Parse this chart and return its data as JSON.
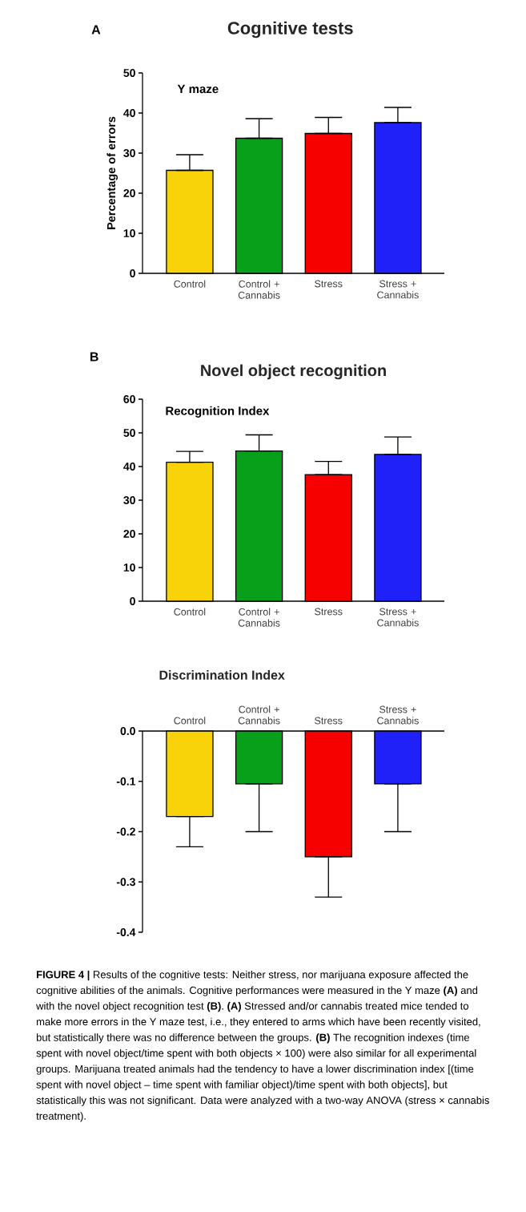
{
  "chart_data": [
    {
      "type": "bar",
      "title": "Cognitive tests",
      "subtitle": "Y maze",
      "ylabel": "Percentage of errors",
      "categories": [
        "Control",
        "Control + Cannabis",
        "Stress",
        "Stress + Cannabis"
      ],
      "values": [
        25.7,
        33.7,
        34.9,
        37.6
      ],
      "colors": [
        "#f9d30a",
        "#08a01a",
        "#f70000",
        "#2020f8"
      ],
      "errors": [
        [
          25.7,
          29.6
        ],
        [
          33.7,
          38.6
        ],
        [
          34.9,
          38.9
        ],
        [
          37.6,
          41.4
        ]
      ],
      "ylim": [
        0,
        50
      ],
      "yticks": [
        0,
        10,
        20,
        30,
        40,
        50
      ],
      "annotations": [
        "A"
      ]
    },
    {
      "type": "bar",
      "title": "Novel object recognition",
      "subtitle": "Recognition Index",
      "categories": [
        "Control",
        "Control + Cannabis",
        "Stress",
        "Stress + Cannabis"
      ],
      "values": [
        41.3,
        44.6,
        37.6,
        43.6
      ],
      "colors": [
        "#f9d30a",
        "#08a01a",
        "#f70000",
        "#2020f8"
      ],
      "errors": [
        [
          41.3,
          44.5
        ],
        [
          44.6,
          49.4
        ],
        [
          37.6,
          41.5
        ],
        [
          43.6,
          48.8
        ]
      ],
      "ylim": [
        0,
        60
      ],
      "yticks": [
        0,
        10,
        20,
        30,
        40,
        50,
        60
      ],
      "annotations": [
        "B"
      ]
    },
    {
      "type": "bar",
      "title": "Discrimination Index",
      "categories": [
        "Control",
        "Control + Cannabis",
        "Stress",
        "Stress + Cannabis"
      ],
      "values": [
        -0.17,
        -0.105,
        -0.25,
        -0.105
      ],
      "colors": [
        "#f9d30a",
        "#08a01a",
        "#f70000",
        "#2020f8"
      ],
      "errors": [
        [
          -0.23,
          -0.17
        ],
        [
          -0.2,
          -0.105
        ],
        [
          -0.33,
          -0.25
        ],
        [
          -0.2,
          -0.105
        ]
      ],
      "ylim": [
        -0.4,
        0
      ],
      "yticks": [
        {
          "value": -0.4,
          "label": "-0.4"
        },
        {
          "value": -0.3,
          "label": "-0.3"
        },
        {
          "value": -0.2,
          "label": "-0.2"
        },
        {
          "value": -0.1,
          "label": "-0.1"
        },
        {
          "value": 0,
          "label": "0.0"
        }
      ],
      "annotations": [
        "**FIGURE 4 |** Results of the cognitive tests: Neither stress, nor marijuana exposure affected the cognitive abilities of the animals. Cognitive performances were measured in the Y maze **(A)** and with the novel object recognition test **(B)**. **(A)** Stressed and/or cannabis treated mice tended to make more errors in the Y maze test, i.e., they entered to arms which have been recently visited, but statistically there was no difference between the groups. **(B)** The recognition indexes (time spent with novel object/time spent with both objects × 100) were also similar for all experimental groups. Marijuana treated animals had the tendency to have a lower discrimination index [(time spent with novel object – time spent with familiar object)/time spent with both objects], but statistically this was not significant. Data were analyzed with a two-way ANOVA (stress × cannabis treatment)."
      ]
    }
  ]
}
